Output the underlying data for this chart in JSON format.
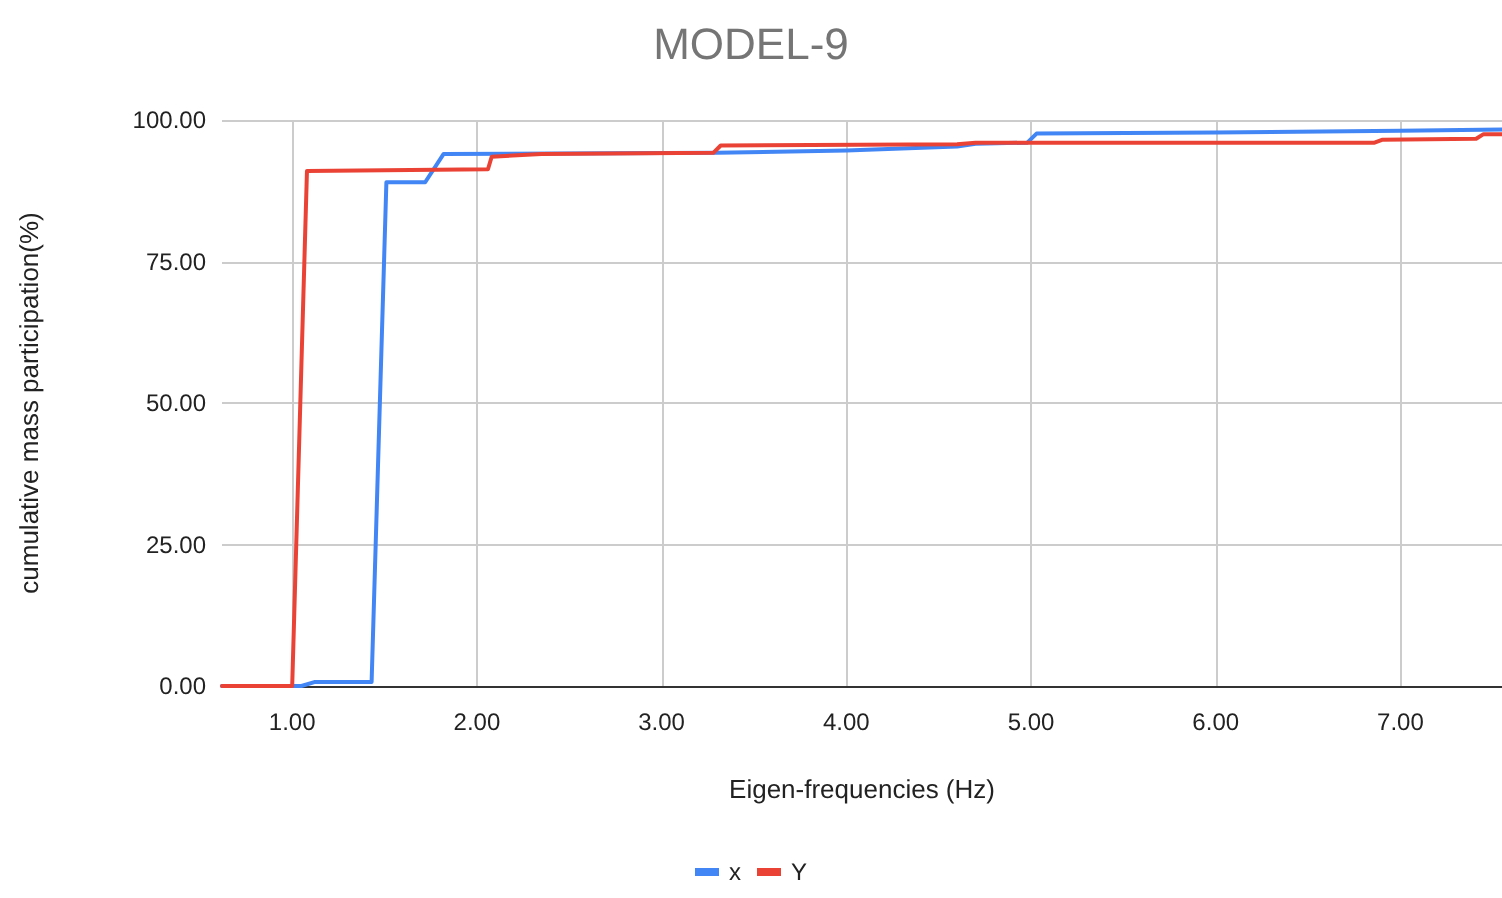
{
  "chart_data": {
    "type": "line",
    "title": "MODEL-9",
    "xlabel": "Eigen-frequencies (Hz)",
    "ylabel": "cumulative mass participation(%)",
    "xlim": [
      0.62,
      7.55
    ],
    "ylim": [
      0,
      100
    ],
    "xticks": [
      {
        "value": 1,
        "label": "1.00"
      },
      {
        "value": 2,
        "label": "2.00"
      },
      {
        "value": 3,
        "label": "3.00"
      },
      {
        "value": 4,
        "label": "4.00"
      },
      {
        "value": 5,
        "label": "5.00"
      },
      {
        "value": 6,
        "label": "6.00"
      },
      {
        "value": 7,
        "label": "7.00"
      }
    ],
    "yticks": [
      {
        "value": 0,
        "label": "0.00"
      },
      {
        "value": 25,
        "label": "25.00"
      },
      {
        "value": 50,
        "label": "50.00"
      },
      {
        "value": 75,
        "label": "75.00"
      },
      {
        "value": 100,
        "label": "100.00"
      }
    ],
    "grid": true,
    "legend": "bottom",
    "marker": "none",
    "line_style": "solid",
    "series": [
      {
        "name": "x",
        "color": "#4285f4",
        "x": [
          0.62,
          1.05,
          1.12,
          1.43,
          1.51,
          1.72,
          1.82,
          3.3,
          4.0,
          4.6,
          4.7,
          4.98,
          5.03,
          6.0,
          7.0,
          7.55
        ],
        "values": [
          0,
          0,
          0.7,
          0.7,
          89,
          89,
          94,
          94.2,
          94.6,
          95.3,
          95.8,
          96,
          97.6,
          97.8,
          98.1,
          98.3
        ]
      },
      {
        "name": "Y",
        "color": "#ea4335",
        "x": [
          0.62,
          1.0,
          1.08,
          2.06,
          2.08,
          2.35,
          3.28,
          3.32,
          4.6,
          4.7,
          6.86,
          6.9,
          7.41,
          7.45,
          7.55
        ],
        "values": [
          0,
          0,
          91,
          91.3,
          93.5,
          94,
          94.2,
          95.5,
          95.7,
          96,
          96,
          96.5,
          96.7,
          97.5,
          97.5
        ]
      }
    ]
  }
}
